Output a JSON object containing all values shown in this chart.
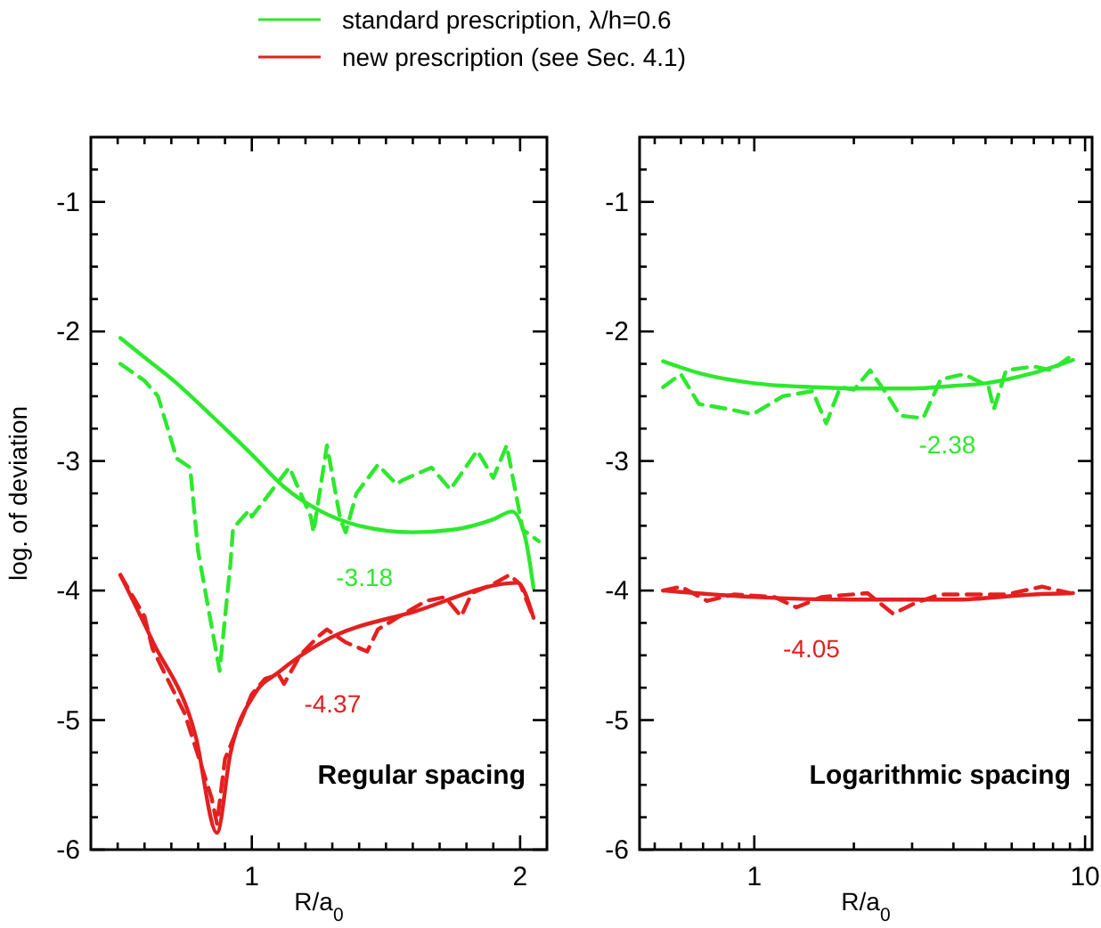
{
  "chart_data": [
    {
      "type": "line",
      "xlabel": "R/a$_{0}$",
      "ylabel": "log. of deviation",
      "xlim": [
        0.4,
        2.1
      ],
      "ylim": [
        -6,
        -0.5
      ],
      "xticks": [
        {
          "value": 0.5,
          "label": null
        },
        {
          "value": 0.6,
          "label": null
        },
        {
          "value": 0.7,
          "label": null
        },
        {
          "value": 0.8,
          "label": null
        },
        {
          "value": 0.9,
          "label": null
        },
        1,
        {
          "value": 1.1,
          "label": null
        },
        {
          "value": 1.2,
          "label": null
        },
        {
          "value": 1.3,
          "label": null
        },
        {
          "value": 1.4,
          "label": null
        },
        {
          "value": 1.5,
          "label": null
        },
        {
          "value": 1.6,
          "label": null
        },
        {
          "value": 1.7,
          "label": null
        },
        {
          "value": 1.8,
          "label": null
        },
        {
          "value": 1.9,
          "label": null
        },
        2
      ],
      "yticks": [
        -6,
        {
          "value": -5.75,
          "label": null
        },
        {
          "value": -5.5,
          "label": null
        },
        {
          "value": -5.25,
          "label": null
        },
        -5,
        {
          "value": -4.75,
          "label": null
        },
        {
          "value": -4.5,
          "label": null
        },
        {
          "value": -4.25,
          "label": null
        },
        -4,
        {
          "value": -3.75,
          "label": null
        },
        {
          "value": -3.5,
          "label": null
        },
        {
          "value": -3.25,
          "label": null
        },
        -3,
        {
          "value": -2.75,
          "label": null
        },
        {
          "value": -2.5,
          "label": null
        },
        {
          "value": -2.25,
          "label": null
        },
        -2,
        {
          "value": -1.75,
          "label": null
        },
        {
          "value": -1.5,
          "label": null
        },
        {
          "value": -1.25,
          "label": null
        },
        -1,
        {
          "value": -0.75,
          "label": null
        }
      ],
      "legend": "top",
      "grid": false,
      "series": [
        {
          "name": "standard prescription, λ/h=0.6",
          "color": "#2ee82e",
          "line_style": "solid",
          "x": [
            0.51,
            0.6,
            0.72,
            0.85,
            1.0,
            1.12,
            1.25,
            1.4,
            1.6,
            1.75,
            1.9,
            1.97,
            2.02,
            2.05
          ],
          "values": [
            -2.05,
            -2.2,
            -2.4,
            -2.65,
            -2.95,
            -3.2,
            -3.38,
            -3.5,
            -3.55,
            -3.53,
            -3.45,
            -3.39,
            -3.6,
            -3.98
          ]
        },
        {
          "name": "new prescription (see Sec. 4.1)",
          "color": "#e32020",
          "line_style": "solid",
          "x": [
            0.51,
            0.63,
            0.79,
            0.87,
            0.92,
            1.01,
            1.1,
            1.27,
            1.61,
            1.99,
            2.05
          ],
          "values": [
            -3.88,
            -4.39,
            -5.12,
            -5.87,
            -5.26,
            -4.8,
            -4.63,
            -4.39,
            -4.16,
            -3.94,
            -4.21
          ]
        },
        {
          "color": "#2ee82e",
          "line_style": "dashed",
          "x": [
            0.51,
            0.6,
            0.65,
            0.72,
            0.77,
            0.8,
            0.88,
            0.92,
            0.93,
            0.99,
            1.0,
            1.14,
            1.22,
            1.23,
            1.28,
            1.33,
            1.35,
            1.39,
            1.47,
            1.54,
            1.56,
            1.67,
            1.74,
            1.84,
            1.9,
            1.95,
            2.01,
            2.07
          ],
          "values": [
            -2.25,
            -2.38,
            -2.5,
            -2.98,
            -3.05,
            -3.7,
            -4.62,
            -3.8,
            -3.52,
            -3.38,
            -3.43,
            -3.05,
            -3.43,
            -3.55,
            -2.88,
            -3.45,
            -3.55,
            -3.25,
            -3.03,
            -3.18,
            -3.15,
            -3.05,
            -3.22,
            -2.92,
            -3.13,
            -2.88,
            -3.53,
            -3.62
          ]
        },
        {
          "color": "#e32020",
          "line_style": "dashed",
          "x": [
            0.51,
            0.6,
            0.63,
            0.75,
            0.85,
            0.87,
            0.9,
            0.95,
            1.0,
            1.05,
            1.1,
            1.12,
            1.18,
            1.25,
            1.28,
            1.35,
            1.43,
            1.47,
            1.55,
            1.65,
            1.72,
            1.78,
            1.82,
            1.9,
            1.96,
            2.0,
            2.05
          ],
          "values": [
            -3.88,
            -4.2,
            -4.45,
            -4.95,
            -5.6,
            -5.8,
            -5.3,
            -5.05,
            -4.8,
            -4.68,
            -4.65,
            -4.72,
            -4.5,
            -4.35,
            -4.3,
            -4.4,
            -4.47,
            -4.3,
            -4.2,
            -4.08,
            -4.05,
            -4.2,
            -4.02,
            -3.95,
            -3.88,
            -3.95,
            -4.21
          ]
        }
      ],
      "annotations": [
        "-3.18",
        "-4.37",
        "Regular spacing"
      ]
    },
    {
      "type": "line",
      "xlabel": "R/a$_{0}$",
      "log": "x",
      "xlim": [
        0.45,
        10.5
      ],
      "ylim": [
        -6,
        -0.5
      ],
      "xticks": [
        {
          "value": 0.5,
          "label": null
        },
        {
          "value": 0.6,
          "label": null
        },
        {
          "value": 0.7,
          "label": null
        },
        {
          "value": 0.8,
          "label": null
        },
        {
          "value": 0.9,
          "label": null
        },
        1,
        {
          "value": 2,
          "label": null
        },
        {
          "value": 3,
          "label": null
        },
        {
          "value": 4,
          "label": null
        },
        {
          "value": 5,
          "label": null
        },
        {
          "value": 6,
          "label": null
        },
        {
          "value": 7,
          "label": null
        },
        {
          "value": 8,
          "label": null
        },
        {
          "value": 9,
          "label": null
        },
        10
      ],
      "yticks": [
        -6,
        {
          "value": -5.75,
          "label": null
        },
        {
          "value": -5.5,
          "label": null
        },
        {
          "value": -5.25,
          "label": null
        },
        -5,
        {
          "value": -4.75,
          "label": null
        },
        {
          "value": -4.5,
          "label": null
        },
        {
          "value": -4.25,
          "label": null
        },
        -4,
        {
          "value": -3.75,
          "label": null
        },
        {
          "value": -3.5,
          "label": null
        },
        {
          "value": -3.25,
          "label": null
        },
        -3,
        {
          "value": -2.75,
          "label": null
        },
        {
          "value": -2.5,
          "label": null
        },
        {
          "value": -2.25,
          "label": null
        },
        -2,
        {
          "value": -1.75,
          "label": null
        },
        {
          "value": -1.5,
          "label": null
        },
        {
          "value": -1.25,
          "label": null
        },
        -1,
        {
          "value": -0.75,
          "label": null
        }
      ],
      "grid": false,
      "series": [
        {
          "color": "#2ee82e",
          "line_style": "solid",
          "x": [
            0.53,
            0.7,
            1,
            1.5,
            2,
            3,
            4,
            5,
            7,
            9.2
          ],
          "values": [
            -2.23,
            -2.33,
            -2.4,
            -2.43,
            -2.44,
            -2.44,
            -2.42,
            -2.4,
            -2.32,
            -2.22
          ]
        },
        {
          "color": "#e32020",
          "line_style": "solid",
          "x": [
            0.53,
            1,
            2,
            4,
            7,
            9.2
          ],
          "values": [
            -4.0,
            -4.05,
            -4.07,
            -4.07,
            -4.03,
            -4.02
          ]
        },
        {
          "color": "#2ee82e",
          "line_style": "dashed",
          "x": [
            0.53,
            0.6,
            0.68,
            0.84,
            0.99,
            1.22,
            1.5,
            1.65,
            1.82,
            2.0,
            2.24,
            2.54,
            2.76,
            3.24,
            3.66,
            4.3,
            5.1,
            5.3,
            5.77,
            7.0,
            7.9,
            8.95
          ],
          "values": [
            -2.43,
            -2.33,
            -2.56,
            -2.6,
            -2.64,
            -2.5,
            -2.46,
            -2.71,
            -2.43,
            -2.45,
            -2.3,
            -2.5,
            -2.65,
            -2.67,
            -2.37,
            -2.33,
            -2.42,
            -2.6,
            -2.3,
            -2.27,
            -2.3,
            -2.2
          ]
        },
        {
          "color": "#e32020",
          "line_style": "dashed",
          "x": [
            0.53,
            0.6,
            0.72,
            0.87,
            1.15,
            1.34,
            1.6,
            2.2,
            2.63,
            3.1,
            3.66,
            5.8,
            7.4,
            9.0
          ],
          "values": [
            -4.0,
            -3.97,
            -4.08,
            -4.03,
            -4.05,
            -4.13,
            -4.05,
            -4.02,
            -4.18,
            -4.09,
            -4.03,
            -4.03,
            -3.97,
            -4.02
          ]
        }
      ],
      "annotations": [
        "-2.38",
        "-4.05",
        "Logarithmic spacing"
      ]
    }
  ]
}
